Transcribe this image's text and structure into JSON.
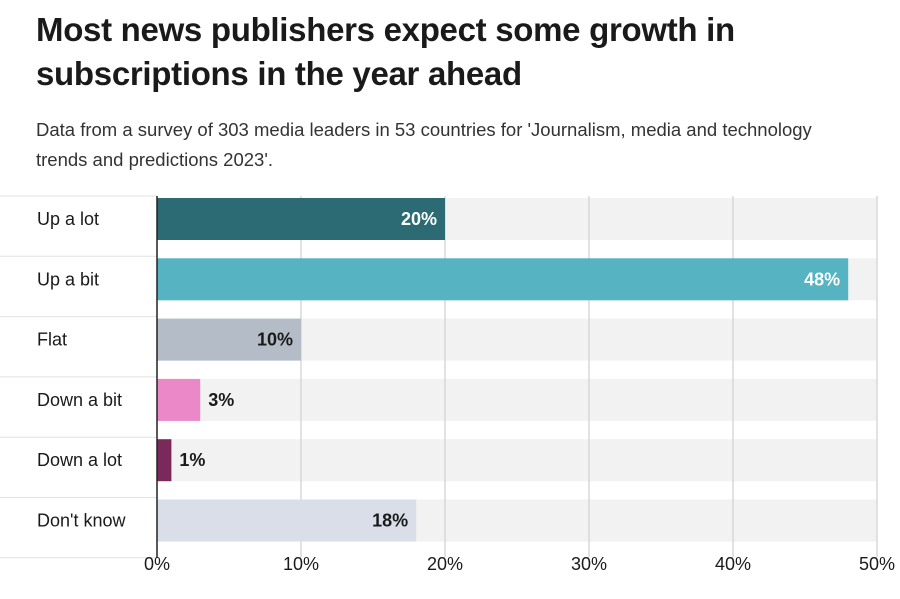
{
  "chart_data": {
    "type": "bar",
    "orientation": "horizontal",
    "title": "Most news publishers expect some growth in subscriptions in the year ahead",
    "subtitle": "Data from a survey of 303 media leaders in 53 countries for 'Journalism, media and technology trends and predictions 2023'.",
    "categories": [
      "Up a lot",
      "Up a bit",
      "Flat",
      "Down a bit",
      "Down a lot",
      "Don't know"
    ],
    "values": [
      20,
      48,
      10,
      3,
      1,
      18
    ],
    "value_labels": [
      "20%",
      "48%",
      "10%",
      "3%",
      "1%",
      "18%"
    ],
    "colors": [
      "#2c6b73",
      "#55b3c2",
      "#b4bcc8",
      "#ea88c8",
      "#7a2a5a",
      "#d9dee8"
    ],
    "label_inside": [
      true,
      true,
      true,
      false,
      false,
      true
    ],
    "label_colors": [
      "#ffffff",
      "#ffffff",
      "#1a1a1a",
      "#1a1a1a",
      "#1a1a1a",
      "#1a1a1a"
    ],
    "xlim": [
      0,
      50
    ],
    "xticks": [
      0,
      10,
      20,
      30,
      40,
      50
    ],
    "xtick_labels": [
      "0%",
      "10%",
      "20%",
      "30%",
      "40%",
      "50%"
    ],
    "grid": true,
    "track_color": "#f2f2f2",
    "grid_color": "#d8d8d8"
  }
}
